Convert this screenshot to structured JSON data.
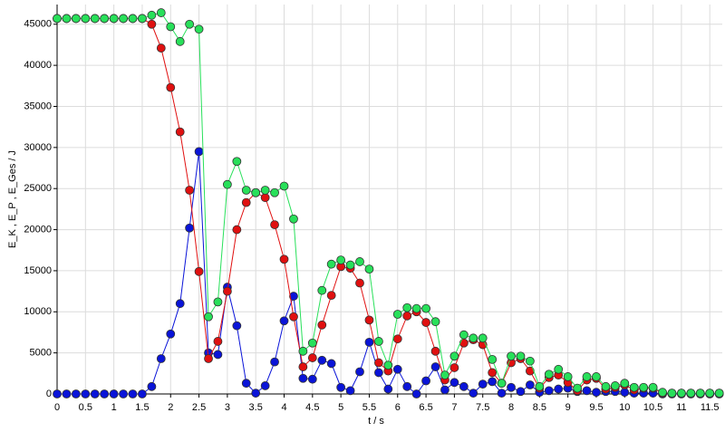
{
  "chart_data": {
    "type": "line",
    "xlabel": "t / s",
    "ylabel": "E_K , E_P , E_Ges / J",
    "x": [
      0,
      0.167,
      0.333,
      0.5,
      0.667,
      0.833,
      1,
      1.167,
      1.333,
      1.5,
      1.667,
      1.833,
      2,
      2.167,
      2.333,
      2.5,
      2.667,
      2.833,
      3,
      3.167,
      3.333,
      3.5,
      3.667,
      3.833,
      4,
      4.167,
      4.333,
      4.5,
      4.667,
      4.833,
      5,
      5.167,
      5.333,
      5.5,
      5.667,
      5.833,
      6,
      6.167,
      6.333,
      6.5,
      6.667,
      6.833,
      7,
      7.167,
      7.333,
      7.5,
      7.667,
      7.833,
      8,
      8.167,
      8.333,
      8.5,
      8.667,
      8.833,
      9,
      9.167,
      9.333,
      9.5,
      9.667,
      9.833,
      10,
      10.167,
      10.333,
      10.5,
      10.667,
      10.833,
      11,
      11.167,
      11.333,
      11.5,
      11.667
    ],
    "series": [
      {
        "color": "#0a14d8",
        "values": [
          0,
          0,
          0,
          0,
          0,
          0,
          0,
          0,
          0,
          0,
          900,
          4300,
          7300,
          11000,
          20200,
          29500,
          5000,
          4800,
          13000,
          8300,
          1300,
          100,
          1000,
          3900,
          8900,
          11900,
          1900,
          1800,
          4100,
          3700,
          800,
          400,
          2700,
          6300,
          2600,
          600,
          3000,
          900,
          0,
          1600,
          3300,
          500,
          1400,
          900,
          100,
          1200,
          1500,
          100,
          800,
          300,
          1100,
          200,
          400,
          600,
          700,
          300,
          400,
          200,
          300,
          300,
          200,
          100,
          100,
          100,
          0,
          0,
          0,
          0,
          0,
          0,
          0
        ]
      },
      {
        "color": "#e01010",
        "values": [
          45700,
          45700,
          45700,
          45700,
          45700,
          45700,
          45700,
          45700,
          45700,
          45700,
          45000,
          42100,
          37300,
          31900,
          24800,
          14900,
          4300,
          6400,
          12500,
          20000,
          23300,
          24500,
          23900,
          20600,
          16400,
          9400,
          3300,
          4400,
          8400,
          12000,
          15500,
          15300,
          13500,
          9000,
          3800,
          2800,
          6700,
          9500,
          10000,
          8700,
          5200,
          1700,
          3200,
          6200,
          6600,
          6000,
          2600,
          1300,
          3800,
          4300,
          2800,
          700,
          2000,
          2300,
          1400,
          400,
          1700,
          1900,
          600,
          800,
          1100,
          500,
          700,
          700,
          100,
          100,
          100,
          100,
          100,
          100,
          100
        ]
      },
      {
        "color": "#28e05a",
        "values": [
          45700,
          45700,
          45700,
          45700,
          45700,
          45700,
          45700,
          45700,
          45700,
          45700,
          46100,
          46400,
          44700,
          42900,
          45000,
          44400,
          9400,
          11200,
          25500,
          28300,
          24800,
          24500,
          24800,
          24500,
          25300,
          21300,
          5200,
          6200,
          12600,
          15800,
          16300,
          15700,
          16100,
          15200,
          6400,
          3500,
          9700,
          10500,
          10400,
          10400,
          8800,
          2300,
          4600,
          7200,
          6800,
          6800,
          4200,
          1300,
          4600,
          4600,
          4000,
          900,
          2400,
          3000,
          2100,
          700,
          2100,
          2100,
          900,
          1000,
          1300,
          800,
          800,
          800,
          200,
          100,
          100,
          100,
          100,
          100,
          100
        ]
      }
    ],
    "xlim": [
      0,
      11.72
    ],
    "xticks": [
      0,
      0.5,
      1,
      1.5,
      2,
      2.5,
      3,
      3.5,
      4,
      4.5,
      5,
      5.5,
      6,
      6.5,
      7,
      7.5,
      8,
      8.5,
      9,
      9.5,
      10,
      10.5,
      11,
      11.5
    ],
    "ylim": [
      0,
      47400
    ],
    "yticks": [
      0,
      5000,
      10000,
      15000,
      20000,
      25000,
      30000,
      35000,
      40000,
      45000
    ],
    "grid": true
  }
}
